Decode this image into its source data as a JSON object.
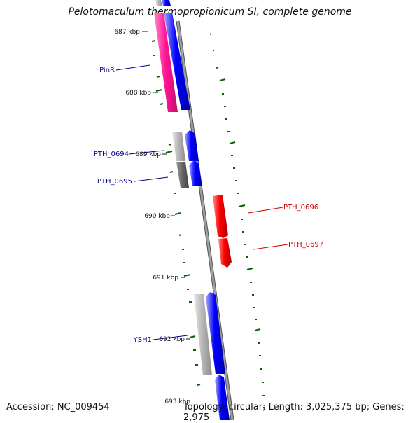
{
  "title": "Pelotomaculum thermopropionicum SI, complete genome",
  "footer": {
    "accession": "Accession: NC_009454",
    "stats": "Topology: circular; Length: 3,025,375 bp; Genes: 2,975"
  },
  "ticks": [
    "687 kbp",
    "688 kbp",
    "689 kbp",
    "690 kbp",
    "691 kbp",
    "692 kbp",
    "693 kbp"
  ],
  "gene_labels": [
    {
      "text": "PinR",
      "color": "#00008b"
    },
    {
      "text": "PTH_0694",
      "color": "#00008b"
    },
    {
      "text": "PTH_0695",
      "color": "#00008b"
    },
    {
      "text": "PTH_0696",
      "color": "#cc0000"
    },
    {
      "text": "PTH_0697",
      "color": "#cc0000"
    },
    {
      "text": "YSH1",
      "color": "#00008b"
    }
  ],
  "colors": {
    "cds": "#0000ff",
    "cds_reverse": "#ff0000",
    "rrna": "#ff1493",
    "gray": "#b4b4b4",
    "dark_gray": "#646464",
    "backbone": "#808080",
    "gc_dots": "#006400"
  }
}
